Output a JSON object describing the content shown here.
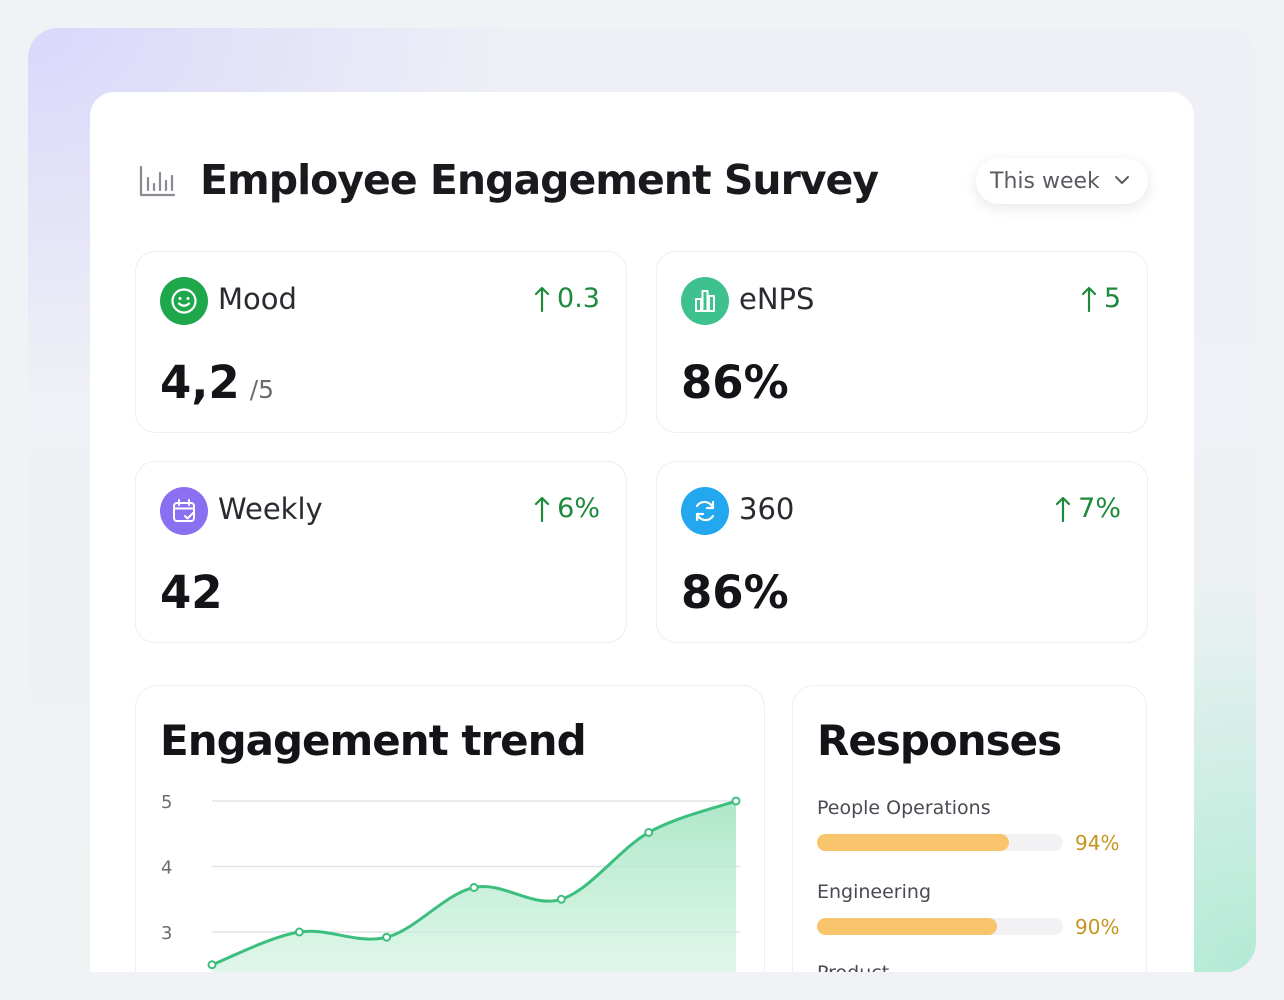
{
  "header": {
    "title": "Employee Engagement Survey",
    "icon": "bar-chart-icon",
    "period": {
      "value": "This week",
      "icon": "chevron-down-icon"
    }
  },
  "stats": [
    {
      "label": "Mood",
      "value": "4,2",
      "suffix": "/5",
      "delta": "0.3",
      "icon": "smile-icon",
      "color": "#1fa74c"
    },
    {
      "label": "eNPS",
      "value": "86%",
      "suffix": "",
      "delta": "5",
      "icon": "building-chart-icon",
      "color": "#3fc08f"
    },
    {
      "label": "Weekly",
      "value": "42",
      "suffix": "",
      "delta": "6%",
      "icon": "calendar-check-icon",
      "color": "#8a6ff0"
    },
    {
      "label": "360",
      "value": "86%",
      "suffix": "",
      "delta": "7%",
      "icon": "refresh-icon",
      "color": "#23a8f0"
    }
  ],
  "trend": {
    "title": "Engagement trend",
    "chart_data": {
      "type": "area",
      "x": [
        1,
        2,
        3,
        4,
        5,
        6,
        7
      ],
      "values": [
        2.5,
        3.0,
        2.92,
        3.68,
        3.5,
        4.52,
        5.0
      ],
      "y_ticks": [
        "5",
        "4",
        "3"
      ],
      "ylim": [
        2.4,
        5
      ],
      "grid": true,
      "line_color": "#3cbf7e"
    }
  },
  "responses": {
    "title": "Responses",
    "items": [
      {
        "label": "People Operations",
        "pct_text": "94%",
        "fill": 0.78
      },
      {
        "label": "Engineering",
        "pct_text": "90%",
        "fill": 0.73
      },
      {
        "label": "Product",
        "pct_text": "",
        "fill": 0
      }
    ]
  },
  "colors": {
    "positive": "#1e8a3c",
    "bar": "#f8c46c",
    "pct": "#c6951f"
  }
}
